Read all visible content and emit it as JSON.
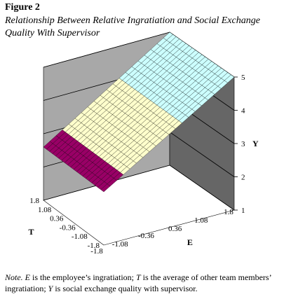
{
  "figure": {
    "label": "Figure 2",
    "title": "Relationship Between Relative Ingratiation and Social Exchange Quality With Supervisor"
  },
  "note": {
    "lead": "Note.",
    "text_parts": [
      {
        "t": " ",
        "i": false
      },
      {
        "t": "E",
        "i": true
      },
      {
        "t": " is the employee’s ingratiation; ",
        "i": false
      },
      {
        "t": "T",
        "i": true
      },
      {
        "t": " is the average of other team members’ ingratiation; ",
        "i": false
      },
      {
        "t": "Y",
        "i": true
      },
      {
        "t": " is social exchange quality with supervisor.",
        "i": false
      }
    ]
  },
  "chart_data": {
    "type": "surface",
    "title": "",
    "x_axis": {
      "label": "E",
      "ticks": [
        "-1.8",
        "-1.08",
        "-0.36",
        "0.36",
        "1.08",
        "1.8"
      ],
      "range": [
        -1.8,
        1.8
      ]
    },
    "t_axis": {
      "label": "T",
      "ticks": [
        "-1.8",
        "-1.08",
        "-0.36",
        "0.36",
        "1.08",
        "1.8"
      ],
      "range": [
        -1.8,
        1.8
      ]
    },
    "y_axis": {
      "label": "Y",
      "ticks": [
        "1",
        "2",
        "3",
        "4",
        "5"
      ],
      "range": [
        1,
        5
      ]
    },
    "grid": true,
    "surface": {
      "note": "plane: Y rises with E",
      "corners": [
        {
          "E": -1.8,
          "T": -1.8,
          "Y": 2.6
        },
        {
          "E": -1.8,
          "T": 1.8,
          "Y": 2.6
        },
        {
          "E": 1.8,
          "T": -1.8,
          "Y": 5.0
        },
        {
          "E": 1.8,
          "T": 1.8,
          "Y": 5.0
        }
      ],
      "bands": [
        {
          "from": 2,
          "to": 3,
          "color": "#990066"
        },
        {
          "from": 3,
          "to": 4,
          "color": "#ffffcc"
        },
        {
          "from": 4,
          "to": 5,
          "color": "#ccffff"
        }
      ]
    },
    "colors": {
      "back_wall": "#a8a8a8",
      "right_wall": "#666666",
      "floor": "#ffffff"
    }
  }
}
